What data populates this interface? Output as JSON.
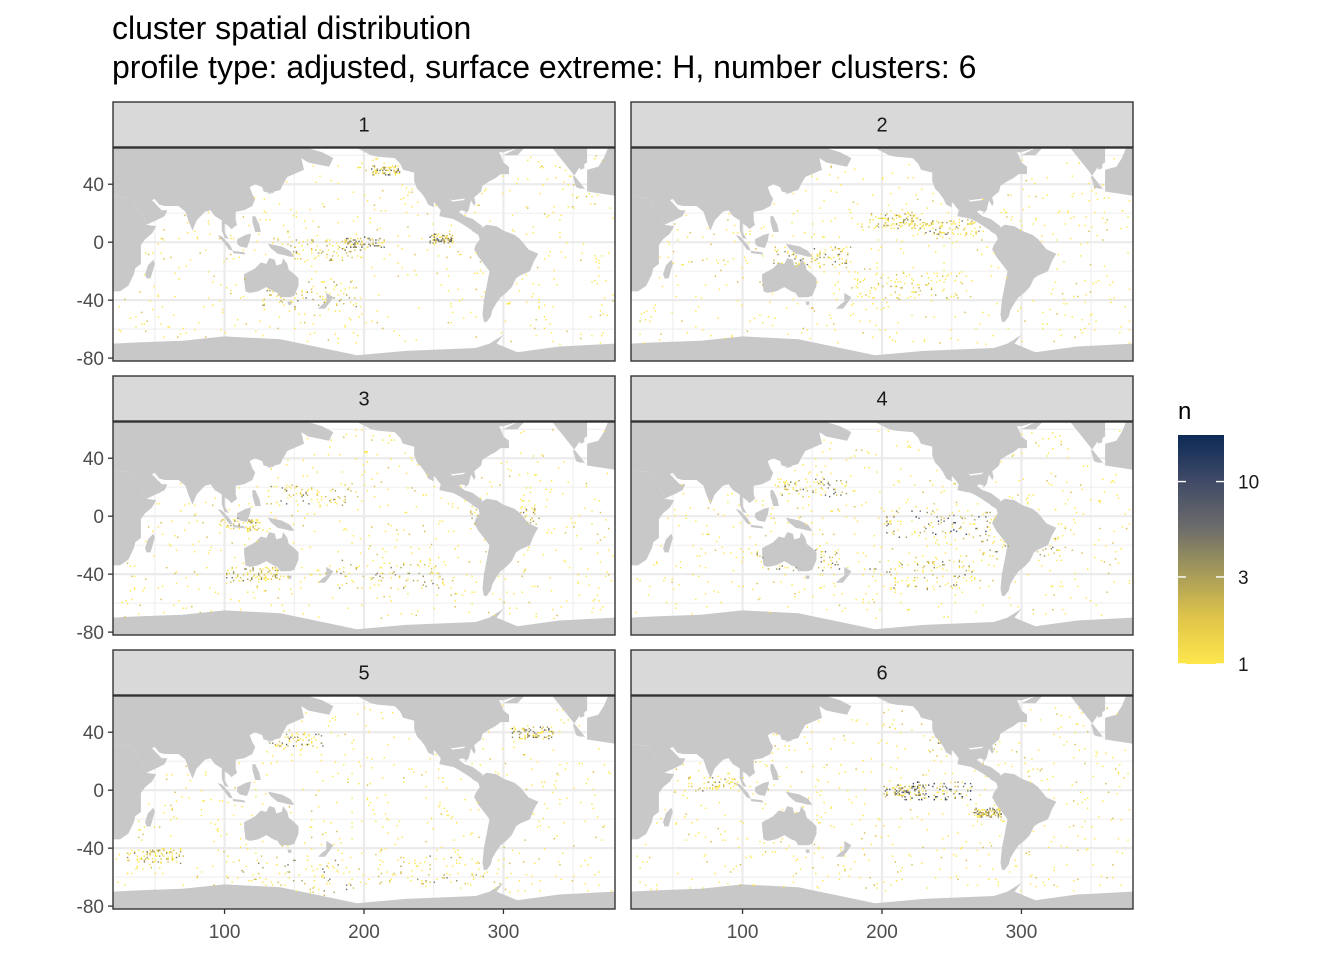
{
  "title": "cluster spatial distribution",
  "subtitle": "profile type: adjusted, surface extreme: H, number clusters: 6",
  "chart_data": {
    "type": "heatmap",
    "facets": [
      "1",
      "2",
      "3",
      "4",
      "5",
      "6"
    ],
    "facet_layout": {
      "ncol": 2,
      "nrow": 3
    },
    "x_ticks": [
      100,
      200,
      300
    ],
    "y_ticks": [
      40,
      0,
      -40,
      -80
    ],
    "x_tick_labels": [
      "100",
      "200",
      "300"
    ],
    "y_tick_labels": [
      "40",
      "0",
      "-40",
      "-80"
    ],
    "xlim": [
      20,
      380
    ],
    "ylim": [
      -82,
      65
    ],
    "xlabel": "",
    "ylabel": "",
    "legend": {
      "title": "n",
      "position": "right",
      "scale": "log",
      "range": [
        1,
        18
      ],
      "breaks": [
        1,
        3,
        10
      ],
      "break_labels": [
        "1",
        "3",
        "10"
      ],
      "colors": [
        "#fde74c",
        "#e0c54a",
        "#a59a5a",
        "#6b6b6b",
        "#3f4a66",
        "#0d2a57"
      ]
    },
    "land_color": "#c8c8c8",
    "panel_background": "#ffffff",
    "grid": true,
    "hotspots": [
      [
        [
          215,
          50,
          10,
          3
        ],
        [
          255,
          3,
          9,
          4
        ],
        [
          200,
          0,
          15,
          3
        ],
        [
          170,
          -5,
          30,
          2
        ],
        [
          160,
          -35,
          35,
          2
        ]
      ],
      [
        [
          210,
          15,
          20,
          2
        ],
        [
          150,
          -10,
          30,
          2
        ],
        [
          250,
          10,
          20,
          2
        ],
        [
          220,
          -30,
          40,
          1
        ]
      ],
      [
        [
          110,
          -5,
          15,
          2
        ],
        [
          160,
          15,
          30,
          2
        ],
        [
          300,
          0,
          25,
          2
        ],
        [
          220,
          -40,
          40,
          2
        ],
        [
          120,
          -40,
          20,
          2
        ]
      ],
      [
        [
          240,
          -5,
          40,
          5
        ],
        [
          150,
          20,
          25,
          3
        ],
        [
          140,
          -30,
          30,
          3
        ],
        [
          300,
          -20,
          30,
          2
        ],
        [
          230,
          -40,
          40,
          2
        ]
      ],
      [
        [
          150,
          35,
          20,
          3
        ],
        [
          320,
          40,
          15,
          3
        ],
        [
          140,
          -60,
          50,
          2
        ],
        [
          250,
          -55,
          40,
          2
        ],
        [
          50,
          -45,
          20,
          2
        ]
      ],
      [
        [
          240,
          0,
          25,
          8
        ],
        [
          215,
          0,
          15,
          4
        ],
        [
          275,
          -15,
          10,
          3
        ],
        [
          250,
          35,
          10,
          2
        ],
        [
          80,
          5,
          20,
          2
        ]
      ]
    ]
  }
}
